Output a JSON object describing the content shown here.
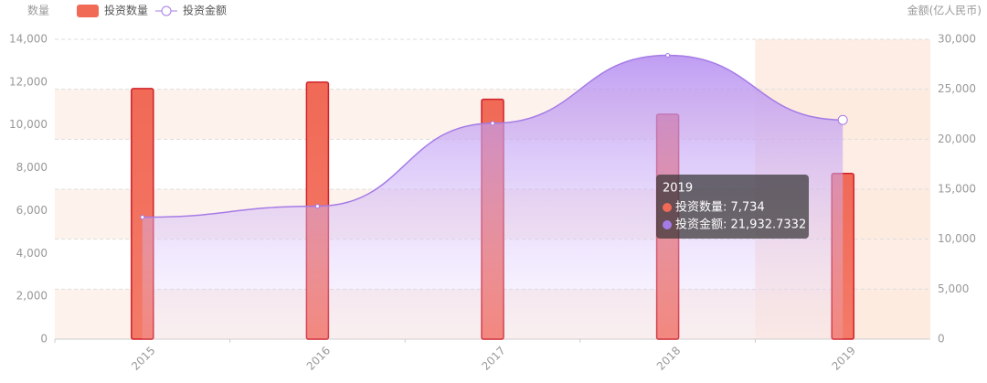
{
  "chart_data": {
    "type": "bar-line",
    "categories": [
      "2015",
      "2016",
      "2017",
      "2018",
      "2019"
    ],
    "series": [
      {
        "name": "投资数量",
        "type": "bar",
        "color": "#f06a56",
        "values": [
          11700,
          12000,
          11200,
          10500,
          7734
        ]
      },
      {
        "name": "投资金额",
        "type": "line",
        "color": "#a57be6",
        "axis": "y2",
        "values": [
          12200,
          13300,
          21600,
          28400,
          21932.7332
        ]
      }
    ],
    "y_label": "数量",
    "y2_label": "金额(亿人民币)",
    "ylim": [
      0,
      14000
    ],
    "yticks": [
      0,
      {
        "value": 2000,
        "label": "2,000"
      },
      {
        "value": 4000,
        "label": "4,000"
      },
      {
        "value": 6000,
        "label": "6,000"
      },
      {
        "value": 8000,
        "label": "8,000"
      },
      {
        "value": 10000,
        "label": "10,000"
      },
      {
        "value": 12000,
        "label": "12,000"
      },
      {
        "value": 14000,
        "label": "14,000"
      }
    ],
    "y2lim": [
      0,
      30000
    ],
    "y2ticks": [
      0,
      {
        "value": 5000,
        "label": "5,000"
      },
      {
        "value": 10000,
        "label": "10,000"
      },
      {
        "value": 15000,
        "label": "15,000"
      },
      {
        "value": 20000,
        "label": "20,000"
      },
      {
        "value": 25000,
        "label": "25,000"
      },
      {
        "value": 30000,
        "label": "30,000"
      }
    ],
    "grid": true,
    "legend": "top-left",
    "tooltip": {
      "title": "2019",
      "items": [
        "投资数量: 7,734",
        "投资金额: 21,932.7332"
      ]
    }
  }
}
